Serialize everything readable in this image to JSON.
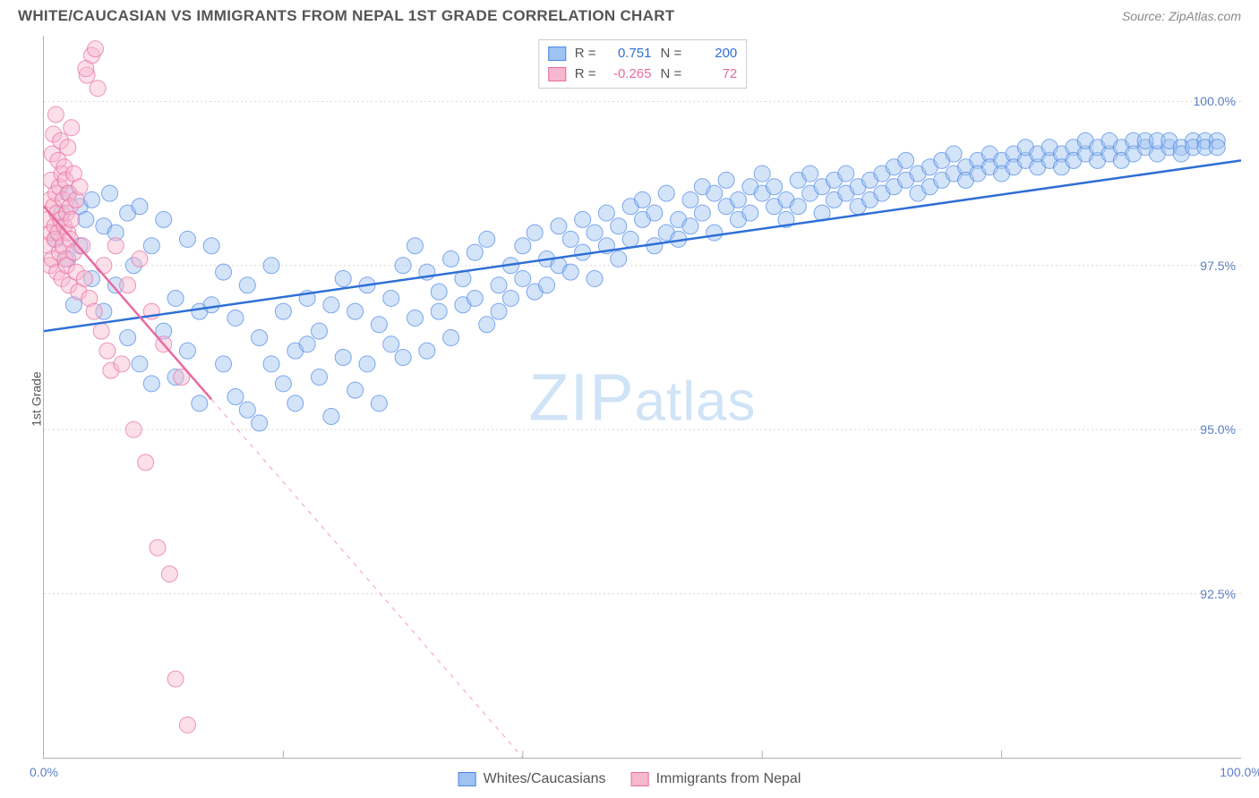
{
  "header": {
    "title": "WHITE/CAUCASIAN VS IMMIGRANTS FROM NEPAL 1ST GRADE CORRELATION CHART",
    "source": "Source: ZipAtlas.com"
  },
  "watermark": {
    "zip": "ZIP",
    "atlas": "atlas"
  },
  "y_label": "1st Grade",
  "chart": {
    "type": "scatter",
    "background_color": "#ffffff",
    "grid_color": "#d8d8d8",
    "grid_dash": "2,3",
    "axis_color": "#b0b0b0",
    "tick_label_color": "#5b7fc7",
    "xlim": [
      0,
      100
    ],
    "ylim": [
      90,
      101
    ],
    "x_ticks": [
      0,
      20,
      40,
      60,
      80,
      100
    ],
    "y_ticks": [
      92.5,
      95.0,
      97.5,
      100.0
    ],
    "x_tick_labels": [
      "0.0%",
      "",
      "",
      "",
      "",
      "100.0%"
    ],
    "y_tick_labels": [
      "92.5%",
      "95.0%",
      "97.5%",
      "100.0%"
    ],
    "marker_radius": 9,
    "marker_opacity": 0.45,
    "trend_line_width": 2.5
  },
  "series": [
    {
      "id": "whites",
      "label": "Whites/Caucasians",
      "color_fill": "#9fc3f0",
      "color_stroke": "#4a86e8",
      "trend_color": "#2e6fd6",
      "trend_dash": null,
      "R": "0.751",
      "N": "200",
      "trend": {
        "x1": 0,
        "y1": 96.5,
        "x2": 100,
        "y2": 99.1
      },
      "points": [
        [
          1,
          97.9
        ],
        [
          1.5,
          98.3
        ],
        [
          2,
          97.6
        ],
        [
          2,
          98.6
        ],
        [
          2.5,
          96.9
        ],
        [
          3,
          98.4
        ],
        [
          3,
          97.8
        ],
        [
          3.5,
          98.2
        ],
        [
          4,
          98.5
        ],
        [
          4,
          97.3
        ],
        [
          5,
          98.1
        ],
        [
          5,
          96.8
        ],
        [
          5.5,
          98.6
        ],
        [
          6,
          97.2
        ],
        [
          6,
          98.0
        ],
        [
          7,
          96.4
        ],
        [
          7,
          98.3
        ],
        [
          7.5,
          97.5
        ],
        [
          8,
          98.4
        ],
        [
          8,
          96.0
        ],
        [
          9,
          97.8
        ],
        [
          9,
          95.7
        ],
        [
          10,
          98.2
        ],
        [
          10,
          96.5
        ],
        [
          11,
          97.0
        ],
        [
          11,
          95.8
        ],
        [
          12,
          97.9
        ],
        [
          12,
          96.2
        ],
        [
          13,
          96.8
        ],
        [
          13,
          95.4
        ],
        [
          14,
          97.8
        ],
        [
          14,
          96.9
        ],
        [
          15,
          96.0
        ],
        [
          15,
          97.4
        ],
        [
          16,
          95.5
        ],
        [
          16,
          96.7
        ],
        [
          17,
          97.2
        ],
        [
          17,
          95.3
        ],
        [
          18,
          96.4
        ],
        [
          18,
          95.1
        ],
        [
          19,
          96.0
        ],
        [
          19,
          97.5
        ],
        [
          20,
          96.8
        ],
        [
          20,
          95.7
        ],
        [
          21,
          95.4
        ],
        [
          21,
          96.2
        ],
        [
          22,
          97.0
        ],
        [
          22,
          96.3
        ],
        [
          23,
          95.8
        ],
        [
          23,
          96.5
        ],
        [
          24,
          95.2
        ],
        [
          24,
          96.9
        ],
        [
          25,
          96.1
        ],
        [
          25,
          97.3
        ],
        [
          26,
          95.6
        ],
        [
          26,
          96.8
        ],
        [
          27,
          97.2
        ],
        [
          27,
          96.0
        ],
        [
          28,
          95.4
        ],
        [
          28,
          96.6
        ],
        [
          29,
          97.0
        ],
        [
          29,
          96.3
        ],
        [
          30,
          97.5
        ],
        [
          30,
          96.1
        ],
        [
          31,
          97.8
        ],
        [
          31,
          96.7
        ],
        [
          32,
          96.2
        ],
        [
          32,
          97.4
        ],
        [
          33,
          96.8
        ],
        [
          33,
          97.1
        ],
        [
          34,
          97.6
        ],
        [
          34,
          96.4
        ],
        [
          35,
          97.3
        ],
        [
          35,
          96.9
        ],
        [
          36,
          97.7
        ],
        [
          36,
          97.0
        ],
        [
          37,
          96.6
        ],
        [
          37,
          97.9
        ],
        [
          38,
          97.2
        ],
        [
          38,
          96.8
        ],
        [
          39,
          97.5
        ],
        [
          39,
          97.0
        ],
        [
          40,
          97.8
        ],
        [
          40,
          97.3
        ],
        [
          41,
          97.1
        ],
        [
          41,
          98.0
        ],
        [
          42,
          97.6
        ],
        [
          42,
          97.2
        ],
        [
          43,
          98.1
        ],
        [
          43,
          97.5
        ],
        [
          44,
          97.9
        ],
        [
          44,
          97.4
        ],
        [
          45,
          98.2
        ],
        [
          45,
          97.7
        ],
        [
          46,
          97.3
        ],
        [
          46,
          98.0
        ],
        [
          47,
          97.8
        ],
        [
          47,
          98.3
        ],
        [
          48,
          97.6
        ],
        [
          48,
          98.1
        ],
        [
          49,
          98.4
        ],
        [
          49,
          97.9
        ],
        [
          50,
          98.2
        ],
        [
          50,
          98.5
        ],
        [
          51,
          97.8
        ],
        [
          51,
          98.3
        ],
        [
          52,
          98.0
        ],
        [
          52,
          98.6
        ],
        [
          53,
          98.2
        ],
        [
          53,
          97.9
        ],
        [
          54,
          98.5
        ],
        [
          54,
          98.1
        ],
        [
          55,
          98.7
        ],
        [
          55,
          98.3
        ],
        [
          56,
          98.0
        ],
        [
          56,
          98.6
        ],
        [
          57,
          98.4
        ],
        [
          57,
          98.8
        ],
        [
          58,
          98.2
        ],
        [
          58,
          98.5
        ],
        [
          59,
          98.7
        ],
        [
          59,
          98.3
        ],
        [
          60,
          98.6
        ],
        [
          60,
          98.9
        ],
        [
          61,
          98.4
        ],
        [
          61,
          98.7
        ],
        [
          62,
          98.5
        ],
        [
          62,
          98.2
        ],
        [
          63,
          98.8
        ],
        [
          63,
          98.4
        ],
        [
          64,
          98.6
        ],
        [
          64,
          98.9
        ],
        [
          65,
          98.3
        ],
        [
          65,
          98.7
        ],
        [
          66,
          98.5
        ],
        [
          66,
          98.8
        ],
        [
          67,
          98.6
        ],
        [
          67,
          98.9
        ],
        [
          68,
          98.4
        ],
        [
          68,
          98.7
        ],
        [
          69,
          98.8
        ],
        [
          69,
          98.5
        ],
        [
          70,
          98.9
        ],
        [
          70,
          98.6
        ],
        [
          71,
          99.0
        ],
        [
          71,
          98.7
        ],
        [
          72,
          98.8
        ],
        [
          72,
          99.1
        ],
        [
          73,
          98.6
        ],
        [
          73,
          98.9
        ],
        [
          74,
          99.0
        ],
        [
          74,
          98.7
        ],
        [
          75,
          99.1
        ],
        [
          75,
          98.8
        ],
        [
          76,
          98.9
        ],
        [
          76,
          99.2
        ],
        [
          77,
          99.0
        ],
        [
          77,
          98.8
        ],
        [
          78,
          99.1
        ],
        [
          78,
          98.9
        ],
        [
          79,
          99.2
        ],
        [
          79,
          99.0
        ],
        [
          80,
          99.1
        ],
        [
          80,
          98.9
        ],
        [
          81,
          99.2
        ],
        [
          81,
          99.0
        ],
        [
          82,
          99.1
        ],
        [
          82,
          99.3
        ],
        [
          83,
          99.0
        ],
        [
          83,
          99.2
        ],
        [
          84,
          99.1
        ],
        [
          84,
          99.3
        ],
        [
          85,
          99.2
        ],
        [
          85,
          99.0
        ],
        [
          86,
          99.3
        ],
        [
          86,
          99.1
        ],
        [
          87,
          99.2
        ],
        [
          87,
          99.4
        ],
        [
          88,
          99.1
        ],
        [
          88,
          99.3
        ],
        [
          89,
          99.2
        ],
        [
          89,
          99.4
        ],
        [
          90,
          99.3
        ],
        [
          90,
          99.1
        ],
        [
          91,
          99.4
        ],
        [
          91,
          99.2
        ],
        [
          92,
          99.3
        ],
        [
          92,
          99.4
        ],
        [
          93,
          99.2
        ],
        [
          93,
          99.4
        ],
        [
          94,
          99.3
        ],
        [
          94,
          99.4
        ],
        [
          95,
          99.3
        ],
        [
          95,
          99.2
        ],
        [
          96,
          99.4
        ],
        [
          96,
          99.3
        ],
        [
          97,
          99.4
        ],
        [
          97,
          99.3
        ],
        [
          98,
          99.4
        ],
        [
          98,
          99.3
        ]
      ]
    },
    {
      "id": "nepal",
      "label": "Immigrants from Nepal",
      "color_fill": "#f6b8ce",
      "color_stroke": "#e86aa0",
      "trend_color": "#e86aa0",
      "trend_dash": "5,6",
      "R": "-0.265",
      "N": "72",
      "trend": {
        "x1": 0,
        "y1": 98.4,
        "x2": 40,
        "y2": 90.0
      },
      "points": [
        [
          0.3,
          98.2
        ],
        [
          0.4,
          97.8
        ],
        [
          0.5,
          98.5
        ],
        [
          0.5,
          97.5
        ],
        [
          0.6,
          98.8
        ],
        [
          0.6,
          98.0
        ],
        [
          0.7,
          99.2
        ],
        [
          0.7,
          97.6
        ],
        [
          0.8,
          98.4
        ],
        [
          0.8,
          99.5
        ],
        [
          0.9,
          98.1
        ],
        [
          0.9,
          97.9
        ],
        [
          1.0,
          98.6
        ],
        [
          1.0,
          99.8
        ],
        [
          1.1,
          98.3
        ],
        [
          1.1,
          97.4
        ],
        [
          1.2,
          99.1
        ],
        [
          1.2,
          98.0
        ],
        [
          1.3,
          98.7
        ],
        [
          1.3,
          97.7
        ],
        [
          1.4,
          99.4
        ],
        [
          1.4,
          98.2
        ],
        [
          1.5,
          97.3
        ],
        [
          1.5,
          98.9
        ],
        [
          1.6,
          98.5
        ],
        [
          1.6,
          97.8
        ],
        [
          1.7,
          99.0
        ],
        [
          1.7,
          98.1
        ],
        [
          1.8,
          97.6
        ],
        [
          1.8,
          98.8
        ],
        [
          1.9,
          98.3
        ],
        [
          1.9,
          97.5
        ],
        [
          2.0,
          99.3
        ],
        [
          2.0,
          98.0
        ],
        [
          2.1,
          97.2
        ],
        [
          2.1,
          98.6
        ],
        [
          2.2,
          98.4
        ],
        [
          2.2,
          97.9
        ],
        [
          2.3,
          99.6
        ],
        [
          2.3,
          98.2
        ],
        [
          2.5,
          97.7
        ],
        [
          2.5,
          98.9
        ],
        [
          2.7,
          97.4
        ],
        [
          2.7,
          98.5
        ],
        [
          2.9,
          97.1
        ],
        [
          3.0,
          98.7
        ],
        [
          3.2,
          97.8
        ],
        [
          3.4,
          97.3
        ],
        [
          3.6,
          100.4
        ],
        [
          3.8,
          97.0
        ],
        [
          4.0,
          100.7
        ],
        [
          4.2,
          96.8
        ],
        [
          4.5,
          100.2
        ],
        [
          4.8,
          96.5
        ],
        [
          5.0,
          97.5
        ],
        [
          5.3,
          96.2
        ],
        [
          5.6,
          95.9
        ],
        [
          6.0,
          97.8
        ],
        [
          6.5,
          96.0
        ],
        [
          7.0,
          97.2
        ],
        [
          7.5,
          95.0
        ],
        [
          8.0,
          97.6
        ],
        [
          8.5,
          94.5
        ],
        [
          9.0,
          96.8
        ],
        [
          9.5,
          93.2
        ],
        [
          10.0,
          96.3
        ],
        [
          10.5,
          92.8
        ],
        [
          11.0,
          91.2
        ],
        [
          11.5,
          95.8
        ],
        [
          12.0,
          90.5
        ],
        [
          3.5,
          100.5
        ],
        [
          4.3,
          100.8
        ]
      ]
    }
  ],
  "corr_legend_labels": {
    "R": "R =",
    "N": "N ="
  },
  "bottom_legend": [
    {
      "label": "Whites/Caucasians",
      "fill": "#9fc3f0",
      "stroke": "#4a86e8"
    },
    {
      "label": "Immigrants from Nepal",
      "fill": "#f6b8ce",
      "stroke": "#e86aa0"
    }
  ]
}
